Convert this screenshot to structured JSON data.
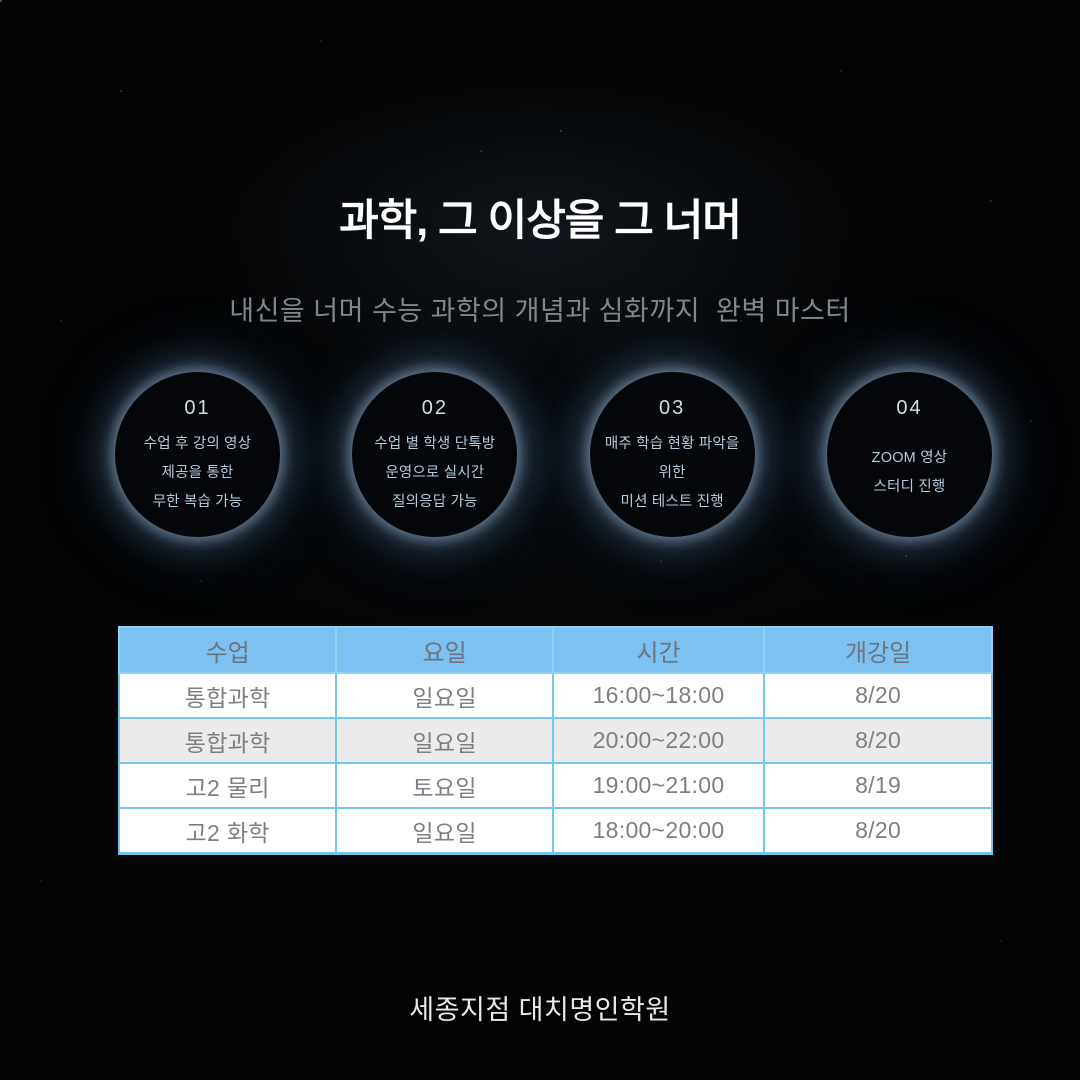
{
  "title": "과학, 그 이상을 그 너머",
  "subtitle": "내신을 너머 수능 과학의 개념과 심화까지  완벽 마스터",
  "features": [
    {
      "number": "01",
      "lines": [
        "수업 후 강의 영상",
        "제공을 통한",
        "무한 복습 가능"
      ]
    },
    {
      "number": "02",
      "lines": [
        "수업 별 학생 단톡방",
        "운영으로 실시간",
        "질의응답 가능"
      ]
    },
    {
      "number": "03",
      "lines": [
        "매주 학습 현황 파악을",
        "위한",
        "미션 테스트 진행"
      ]
    },
    {
      "number": "04",
      "lines": [
        "ZOOM 영상",
        "스터디 진행"
      ]
    }
  ],
  "schedule_table": {
    "headers": [
      "수업",
      "요일",
      "시간",
      "개강일"
    ],
    "rows": [
      [
        "통합과학",
        "일요일",
        "16:00~18:00",
        "8/20"
      ],
      [
        "통합과학",
        "일요일",
        "20:00~22:00",
        "8/20"
      ],
      [
        "고2 물리",
        "토요일",
        "19:00~21:00",
        "8/19"
      ],
      [
        "고2 화학",
        "일요일",
        "18:00~20:00",
        "8/20"
      ]
    ]
  },
  "footer": "세종지점 대치명인학원",
  "colors": {
    "background": "#030405",
    "header_bg": "#7cc1f2",
    "table_border": "#6fc4ee",
    "alt_row_bg": "#ebebec",
    "circle_glow": "#9cc3e8",
    "title_text": "#ffffff",
    "subtitle_text": "#83878b"
  }
}
